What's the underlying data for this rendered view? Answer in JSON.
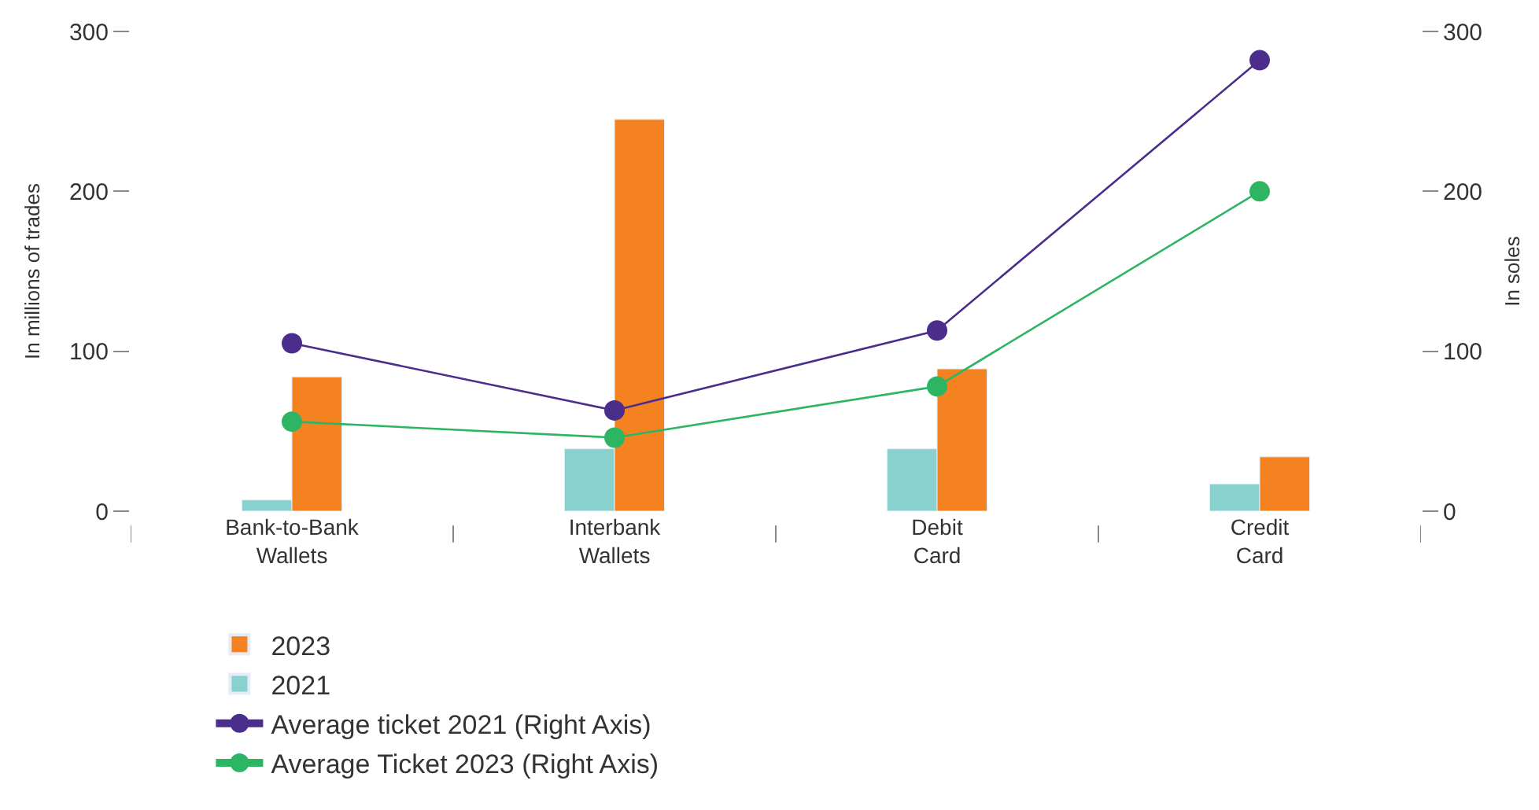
{
  "chart_data": {
    "type": "bar",
    "ylabel": "In millions of trades",
    "y2label": "In soles",
    "categories": [
      "Bank-to-Bank\nWallets",
      "Interbank\nWallets",
      "Debit\nCard",
      "Credit\nCard"
    ],
    "series": [
      {
        "name": "2023",
        "color": "#f58220",
        "values": [
          84,
          245,
          89,
          34
        ]
      },
      {
        "name": "2021",
        "color": "#88d1cf",
        "values": [
          7,
          39,
          39,
          17
        ]
      },
      {
        "name": "Average ticket 2021 (Right Axis)",
        "type": "line",
        "axis": "y2",
        "color": "#4b2e8c",
        "values": [
          105,
          63,
          113,
          282
        ]
      },
      {
        "name": "Average Ticket 2023 (Right Axis)",
        "type": "line",
        "axis": "y2",
        "color": "#2db563",
        "values": [
          56,
          46,
          78,
          200
        ]
      }
    ],
    "ylim": [
      0,
      300
    ],
    "yticks": [
      0,
      100,
      200,
      300
    ],
    "y2lim": [
      0,
      300
    ],
    "y2ticks": [
      0,
      100,
      200,
      300
    ],
    "marker": "circle",
    "legend": "bottom"
  }
}
